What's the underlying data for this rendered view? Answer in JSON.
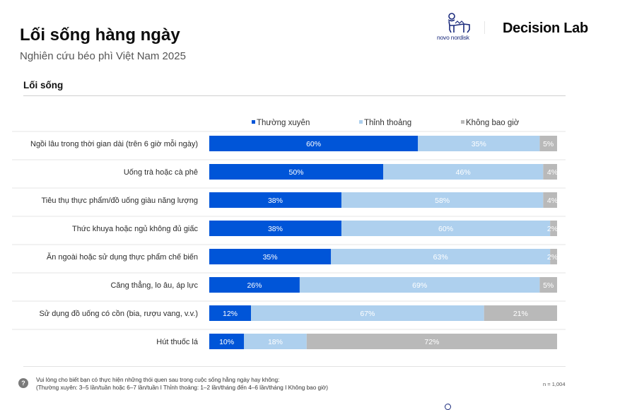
{
  "header": {
    "title": "Lối sống hàng ngày",
    "subtitle": "Nghiên cứu béo phì Việt Nam 2025",
    "logos": {
      "novo_nordisk": "novo nordisk",
      "novo_icon": "bull-icon",
      "decision_lab": "Decision Lab"
    }
  },
  "section": {
    "title": "Lối sống"
  },
  "colors": {
    "frequent": "#0055d8",
    "sometimes": "#aed0ee",
    "never": "#b9b9b9",
    "grid": "#e6e6e6",
    "label_text": "#2b2b2b"
  },
  "chart_data": {
    "type": "bar",
    "orientation": "horizontal",
    "stacked": true,
    "percent": true,
    "title": "Lối sống",
    "xlabel": "",
    "ylabel": "",
    "xlim": [
      0,
      100
    ],
    "legend_position": "top",
    "categories": [
      "Ngồi lâu trong thời gian dài (trên 6 giờ mỗi ngày)",
      "Uống trà hoặc cà phê",
      "Tiêu thụ thực phẩm/đồ uống giàu năng lượng",
      "Thức khuya hoặc ngủ không đủ giấc",
      "Ăn ngoài hoặc sử dụng thực phẩm chế biến",
      "Căng thẳng, lo âu, áp lực",
      "Sử dụng đồ uống có cồn (bia, rượu vang, v.v.)",
      "Hút thuốc lá"
    ],
    "series": [
      {
        "name": "Thường xuyên",
        "color": "#0055d8",
        "values": [
          60,
          50,
          38,
          38,
          35,
          26,
          12,
          10
        ]
      },
      {
        "name": "Thỉnh thoảng",
        "color": "#aed0ee",
        "values": [
          35,
          46,
          58,
          60,
          63,
          69,
          67,
          18
        ]
      },
      {
        "name": "Không bao giờ",
        "color": "#b9b9b9",
        "values": [
          5,
          4,
          4,
          2,
          2,
          5,
          21,
          72
        ]
      }
    ],
    "value_suffix": "%"
  },
  "footer": {
    "question_icon": "question-icon",
    "question_line1": "Vui lòng cho biết bạn có thực hiện những thói quen sau trong cuộc sống hằng ngày hay không:",
    "question_line2": "(Thường xuyên: 3–5 lần/tuần hoặc 6–7 lần/tuần I Thỉnh thoảng: 1–2 lần/tháng đến 4–6 lần/tháng I Không bao giờ)",
    "sample_size": "n = 1,004"
  }
}
